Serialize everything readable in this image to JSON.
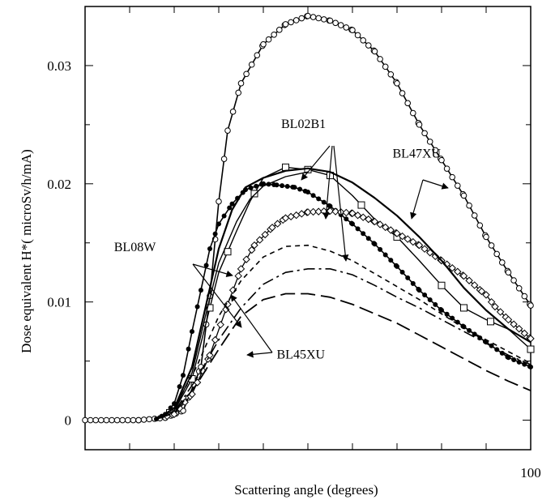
{
  "chart_data": {
    "type": "line",
    "title": "",
    "xlabel": "Scattering angle (degrees)",
    "ylabel": "Dose equivalent H*( microSv/h/mA)",
    "xlim": [
      0,
      100
    ],
    "ylim": [
      -0.0025,
      0.035
    ],
    "x_tick_labels": [
      {
        "value": 100,
        "label": "100"
      }
    ],
    "y_tick_labels": [
      {
        "value": 0,
        "label": "0"
      },
      {
        "value": 0.01,
        "label": "0.01"
      },
      {
        "value": 0.02,
        "label": "0.02"
      },
      {
        "value": 0.03,
        "label": "0.03"
      }
    ],
    "grid": false,
    "series": [
      {
        "id": "open-circles",
        "style": "line-open-circle",
        "x": [
          0,
          12,
          18,
          22,
          26,
          28,
          30,
          32,
          35,
          40,
          45,
          50,
          55,
          60,
          65,
          70,
          75,
          80,
          85,
          90,
          95,
          100
        ],
        "y": [
          0,
          0,
          0.0002,
          0.0008,
          0.0045,
          0.0105,
          0.0185,
          0.0245,
          0.0285,
          0.0318,
          0.0335,
          0.0342,
          0.0338,
          0.033,
          0.0312,
          0.0285,
          0.025,
          0.022,
          0.019,
          0.0155,
          0.0125,
          0.0097
        ]
      },
      {
        "id": "filled-circles",
        "style": "line-filled-circle",
        "x": [
          16,
          18,
          20,
          22,
          24,
          26,
          28,
          30,
          33,
          36,
          40,
          43,
          47,
          50,
          55,
          60,
          65,
          70,
          75,
          80,
          85,
          90,
          95,
          100
        ],
        "y": [
          0.0001,
          0.0005,
          0.0014,
          0.0038,
          0.0075,
          0.011,
          0.0145,
          0.0166,
          0.0183,
          0.0195,
          0.02,
          0.0199,
          0.0197,
          0.0193,
          0.0181,
          0.0166,
          0.0149,
          0.013,
          0.011,
          0.0093,
          0.0079,
          0.0066,
          0.0053,
          0.0045
        ]
      },
      {
        "id": "open-squares",
        "style": "line-open-square",
        "x": [
          16,
          20,
          24,
          27,
          30,
          34,
          37,
          40,
          45,
          50,
          55,
          60,
          65,
          70,
          75,
          80,
          85,
          90,
          95,
          100
        ],
        "y": [
          0.0001,
          0.0008,
          0.0035,
          0.008,
          0.0125,
          0.016,
          0.0185,
          0.0205,
          0.0214,
          0.0212,
          0.0207,
          0.019,
          0.017,
          0.0155,
          0.0135,
          0.0114,
          0.0095,
          0.0085,
          0.0077,
          0.006
        ]
      },
      {
        "id": "open-diamonds",
        "style": "line-open-diamond",
        "x": [
          16,
          20,
          24,
          28,
          32,
          35,
          38,
          42,
          45,
          50,
          55,
          60,
          65,
          70,
          75,
          80,
          85,
          89,
          90,
          92,
          95,
          100
        ],
        "y": [
          0.0001,
          0.0005,
          0.0022,
          0.0055,
          0.0098,
          0.0128,
          0.0148,
          0.0163,
          0.0171,
          0.0176,
          0.0177,
          0.0175,
          0.0168,
          0.0158,
          0.0148,
          0.0135,
          0.0122,
          0.0109,
          0.0106,
          0.0096,
          0.0085,
          0.0069
        ]
      },
      {
        "id": "solid-thick",
        "style": "solid",
        "x": [
          16,
          20,
          24,
          27,
          30,
          33,
          36,
          40,
          45,
          50,
          55,
          60,
          65,
          70,
          75,
          80,
          85,
          90,
          95,
          100
        ],
        "y": [
          0.0001,
          0.001,
          0.0045,
          0.0095,
          0.0145,
          0.0178,
          0.0197,
          0.0205,
          0.0211,
          0.0213,
          0.021,
          0.0201,
          0.0188,
          0.0173,
          0.0155,
          0.0135,
          0.0112,
          0.0093,
          0.0077,
          0.0066
        ]
      },
      {
        "id": "solid-thin",
        "style": "solid-thin",
        "x": [
          16,
          20,
          24,
          27,
          30,
          34,
          37,
          40,
          45,
          50
        ],
        "y": [
          0.0001,
          0.0008,
          0.004,
          0.0088,
          0.0133,
          0.0168,
          0.0187,
          0.0198,
          0.0206,
          0.021
        ]
      },
      {
        "id": "short-dash",
        "style": "short-dash",
        "x": [
          16,
          20,
          25,
          30,
          35,
          40,
          45,
          50,
          55,
          60,
          65,
          70,
          75,
          80,
          85,
          90,
          95,
          100
        ],
        "y": [
          0.0001,
          0.001,
          0.0045,
          0.0088,
          0.0118,
          0.0138,
          0.0147,
          0.0148,
          0.0143,
          0.0135,
          0.0124,
          0.0113,
          0.0102,
          0.009,
          0.0078,
          0.0068,
          0.0058,
          0.0048
        ]
      },
      {
        "id": "dash-dot",
        "style": "dash-dot",
        "x": [
          16,
          20,
          25,
          30,
          35,
          40,
          45,
          50,
          55,
          60,
          65,
          70,
          75,
          80,
          85,
          90,
          95,
          100
        ],
        "y": [
          0.0001,
          0.0007,
          0.0035,
          0.0068,
          0.0095,
          0.0115,
          0.0125,
          0.0128,
          0.0128,
          0.0123,
          0.0114,
          0.0104,
          0.0095,
          0.0085,
          0.0075,
          0.0065,
          0.0055,
          0.0047
        ]
      },
      {
        "id": "long-dash",
        "style": "long-dash",
        "x": [
          16,
          20,
          25,
          30,
          35,
          40,
          45,
          50,
          55,
          60,
          65,
          70,
          75,
          80,
          85,
          90,
          95,
          100
        ],
        "y": [
          0.0001,
          0.0006,
          0.003,
          0.006,
          0.0088,
          0.0102,
          0.0107,
          0.0107,
          0.0104,
          0.0098,
          0.009,
          0.0082,
          0.0072,
          0.0062,
          0.0052,
          0.0042,
          0.0033,
          0.0025
        ]
      }
    ],
    "annotations": [
      {
        "text": "BL02B1",
        "x": 44,
        "y": 0.0247
      },
      {
        "text": "BL47XU",
        "x": 69,
        "y": 0.0222
      },
      {
        "text": "BL08W",
        "x": 6.5,
        "y": 0.0143
      },
      {
        "text": "BL45XU",
        "x": 43,
        "y": 0.0052
      }
    ]
  }
}
